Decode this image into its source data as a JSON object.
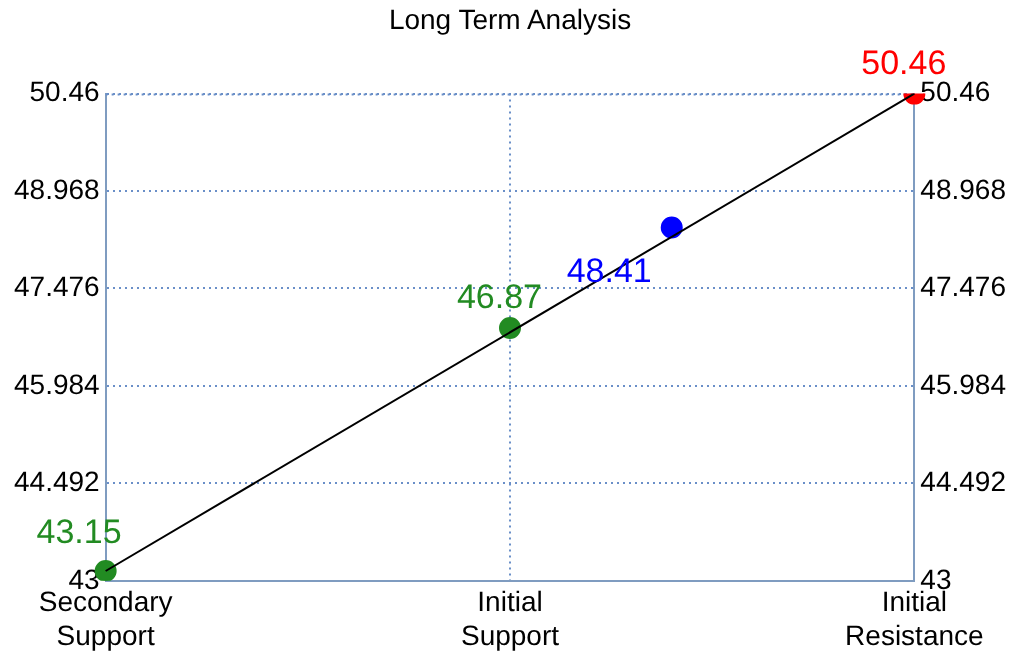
{
  "chart_data": {
    "type": "scatter",
    "title": "Long Term Analysis",
    "categories": [
      "Secondary Support",
      null,
      null,
      null,
      null,
      "Initial Support",
      null,
      null,
      null,
      null,
      "Initial Resistance"
    ],
    "ylim": [
      43,
      50.46
    ],
    "yticks": [
      43,
      44.492,
      45.984,
      47.476,
      48.968,
      50.46
    ],
    "y2lim": [
      43,
      50.46
    ],
    "y2ticks": [
      43,
      44.492,
      45.984,
      47.476,
      48.968,
      50.46
    ],
    "series": [
      {
        "type": "line",
        "color": "#000000",
        "marker": "none",
        "values": [
          43.15,
          null,
          null,
          null,
          null,
          null,
          null,
          null,
          null,
          null,
          50.46
        ]
      },
      {
        "type": "scatter",
        "values": [
          43.15,
          null,
          null,
          null,
          null,
          46.87,
          null,
          48.41,
          null,
          null,
          50.46
        ],
        "colors": [
          "#228b22",
          null,
          null,
          null,
          null,
          "#228b22",
          null,
          "#0000ff",
          null,
          null,
          "#ff0000"
        ],
        "value_labels": [
          "43.15",
          null,
          null,
          null,
          null,
          "46.87",
          null,
          "48.41",
          null,
          null,
          "50.46"
        ]
      }
    ],
    "grid": true,
    "marker": "circle"
  }
}
